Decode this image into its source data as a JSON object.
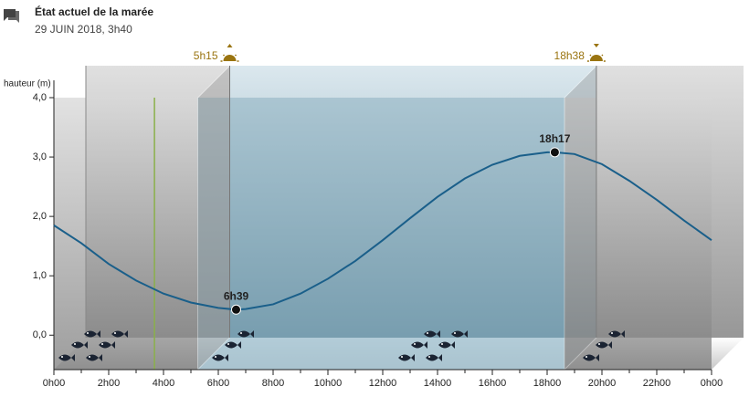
{
  "chart_data": {
    "type": "line",
    "title": "État actuel de la marée",
    "subtitle": "29 JUIN 2018, 3h40",
    "y_label": "hauteur (m)",
    "x": [
      0,
      1,
      2,
      3,
      4,
      5,
      6,
      6.65,
      7,
      8,
      9,
      10,
      11,
      12,
      13,
      14,
      15,
      16,
      17,
      18,
      18.28,
      19,
      20,
      21,
      22,
      23,
      24
    ],
    "series": [
      {
        "color": "#1a5f8a",
        "values": [
          1.85,
          1.55,
          1.2,
          0.92,
          0.7,
          0.55,
          0.46,
          0.43,
          0.44,
          0.52,
          0.7,
          0.95,
          1.25,
          1.6,
          1.97,
          2.33,
          2.64,
          2.87,
          3.02,
          3.08,
          3.08,
          3.05,
          2.88,
          2.6,
          2.28,
          1.93,
          1.6
        ]
      }
    ],
    "xlim": [
      0,
      24
    ],
    "xticks": [
      {
        "value": 0,
        "label": "0h00"
      },
      {
        "value": 2,
        "label": "2h00"
      },
      {
        "value": 4,
        "label": "4h00"
      },
      {
        "value": 6,
        "label": "6h00"
      },
      {
        "value": 8,
        "label": "8h00"
      },
      {
        "value": 10,
        "label": "10h00"
      },
      {
        "value": 12,
        "label": "12h00"
      },
      {
        "value": 14,
        "label": "14h00"
      },
      {
        "value": 16,
        "label": "16h00"
      },
      {
        "value": 18,
        "label": "18h00"
      },
      {
        "value": 20,
        "label": "20h00"
      },
      {
        "value": 22,
        "label": "22h00"
      },
      {
        "value": 24,
        "label": "0h00"
      }
    ],
    "ylim": [
      -0.58,
      4
    ],
    "yticks": [
      {
        "value": 0,
        "label": "0,0"
      },
      {
        "value": 1,
        "label": "1,0"
      },
      {
        "value": 2,
        "label": "2,0"
      },
      {
        "value": 3,
        "label": "3,0"
      },
      {
        "value": 4,
        "label": "4,0"
      }
    ],
    "extremes": [
      {
        "label": "6h39",
        "x": 6.65,
        "y": 0.43
      },
      {
        "label": "18h17",
        "x": 18.28,
        "y": 3.08
      }
    ],
    "sunrise": {
      "label": "5h15",
      "x": 5.25
    },
    "sunset": {
      "label": "18h38",
      "x": 18.63
    },
    "now": {
      "x": 3.67,
      "color": "#8ab04a"
    },
    "day_color": "#7fa6b8",
    "night_color": "#8c8c8c",
    "sun_color": "#9a7410"
  }
}
